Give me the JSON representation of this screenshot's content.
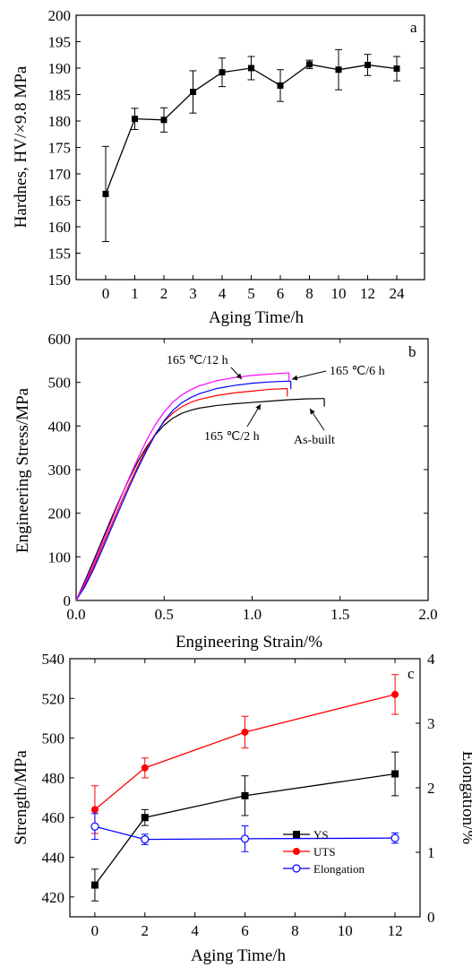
{
  "chart_data": [
    {
      "type": "line",
      "panel_label": "a",
      "xlabel": "Aging Time/h",
      "ylabel": "Hardnes, HV/×9.8 MPa",
      "ylim": [
        150,
        200
      ],
      "yticks": [
        150,
        155,
        160,
        165,
        170,
        175,
        180,
        185,
        190,
        195,
        200
      ],
      "categories": [
        "0",
        "1",
        "2",
        "3",
        "4",
        "5",
        "6",
        "8",
        "10",
        "12",
        "24"
      ],
      "values": [
        166.2,
        180.4,
        180.2,
        185.5,
        189.2,
        190.0,
        186.7,
        190.7,
        189.7,
        190.6,
        189.9
      ],
      "errors": [
        9.0,
        2.0,
        2.3,
        4.0,
        2.7,
        2.2,
        3.0,
        0.8,
        3.8,
        2.0,
        2.3
      ],
      "color": "#000000"
    },
    {
      "type": "line",
      "panel_label": "b",
      "xlabel": "Engineering Strain/%",
      "ylabel": "Engineering Stress/MPa",
      "xlim": [
        0.0,
        2.0
      ],
      "ylim": [
        0,
        600
      ],
      "xticks": [
        0.0,
        0.5,
        1.0,
        1.5,
        2.0
      ],
      "yticks": [
        0,
        100,
        200,
        300,
        400,
        500,
        600
      ],
      "series": [
        {
          "name": "As-built",
          "color": "#000000",
          "x": [
            0,
            0.05,
            0.1,
            0.15,
            0.2,
            0.25,
            0.3,
            0.35,
            0.4,
            0.45,
            0.5,
            0.55,
            0.6,
            0.65,
            0.7,
            0.8,
            0.9,
            1.0,
            1.1,
            1.2,
            1.3,
            1.41
          ],
          "y": [
            0,
            45,
            92,
            140,
            188,
            234,
            278,
            318,
            352,
            380,
            402,
            418,
            429,
            436,
            441,
            447,
            451,
            454,
            457,
            460,
            462,
            463
          ]
        },
        {
          "name": "165 ℃/2 h",
          "color": "#ff0000",
          "x": [
            0,
            0.05,
            0.1,
            0.15,
            0.2,
            0.25,
            0.3,
            0.35,
            0.4,
            0.45,
            0.5,
            0.55,
            0.6,
            0.65,
            0.7,
            0.8,
            0.9,
            1.0,
            1.1,
            1.2
          ],
          "y": [
            0,
            35,
            78,
            125,
            172,
            220,
            265,
            308,
            348,
            382,
            410,
            430,
            444,
            454,
            461,
            470,
            476,
            480,
            484,
            486
          ]
        },
        {
          "name": "165 ℃/6 h",
          "color": "#0000ff",
          "x": [
            0,
            0.05,
            0.1,
            0.15,
            0.2,
            0.25,
            0.3,
            0.35,
            0.4,
            0.45,
            0.5,
            0.55,
            0.6,
            0.65,
            0.7,
            0.8,
            0.9,
            1.0,
            1.1,
            1.22
          ],
          "y": [
            0,
            32,
            72,
            118,
            165,
            212,
            258,
            302,
            343,
            380,
            412,
            436,
            453,
            465,
            474,
            486,
            493,
            498,
            501,
            503
          ]
        },
        {
          "name": "165 ℃/12 h",
          "color": "#ff00ff",
          "x": [
            0,
            0.05,
            0.1,
            0.15,
            0.2,
            0.25,
            0.3,
            0.35,
            0.4,
            0.45,
            0.5,
            0.55,
            0.6,
            0.65,
            0.7,
            0.8,
            0.9,
            1.0,
            1.1,
            1.21
          ],
          "y": [
            0,
            40,
            85,
            133,
            182,
            232,
            280,
            325,
            367,
            403,
            432,
            455,
            471,
            483,
            492,
            504,
            511,
            516,
            519,
            522
          ]
        }
      ],
      "annotations": [
        "165 ℃/12 h",
        "165 ℃/6 h",
        "165 ℃/2 h",
        "As-built"
      ]
    },
    {
      "type": "line",
      "panel_label": "c",
      "xlabel": "Aging Time/h",
      "ylabel": "Strength/MPa",
      "y2label": "Elongation/%",
      "xlim": [
        -1,
        13
      ],
      "ylim": [
        410,
        540
      ],
      "y2lim": [
        0,
        4
      ],
      "xticks": [
        0,
        2,
        4,
        6,
        8,
        10,
        12
      ],
      "yticks": [
        420,
        440,
        460,
        480,
        500,
        520,
        540
      ],
      "y2ticks": [
        0,
        1,
        2,
        3,
        4
      ],
      "legend_position": "bottom-right",
      "series": [
        {
          "name": "YS",
          "color": "#000000",
          "marker": "square",
          "axis": "left",
          "x": [
            0,
            2,
            6,
            12
          ],
          "y": [
            426,
            460,
            471,
            482
          ],
          "errors": [
            8,
            4,
            10,
            11
          ]
        },
        {
          "name": "UTS",
          "color": "#ff0000",
          "marker": "circle",
          "axis": "left",
          "x": [
            0,
            2,
            6,
            12
          ],
          "y": [
            464,
            485,
            503,
            522
          ],
          "errors": [
            12,
            5,
            8,
            10
          ]
        },
        {
          "name": "Elongation",
          "color": "#0000ff",
          "marker": "open-circle",
          "axis": "right",
          "x": [
            0,
            2,
            6,
            12
          ],
          "y": [
            1.4,
            1.2,
            1.21,
            1.22
          ],
          "errors": [
            0.2,
            0.08,
            0.2,
            0.08
          ]
        }
      ]
    }
  ]
}
